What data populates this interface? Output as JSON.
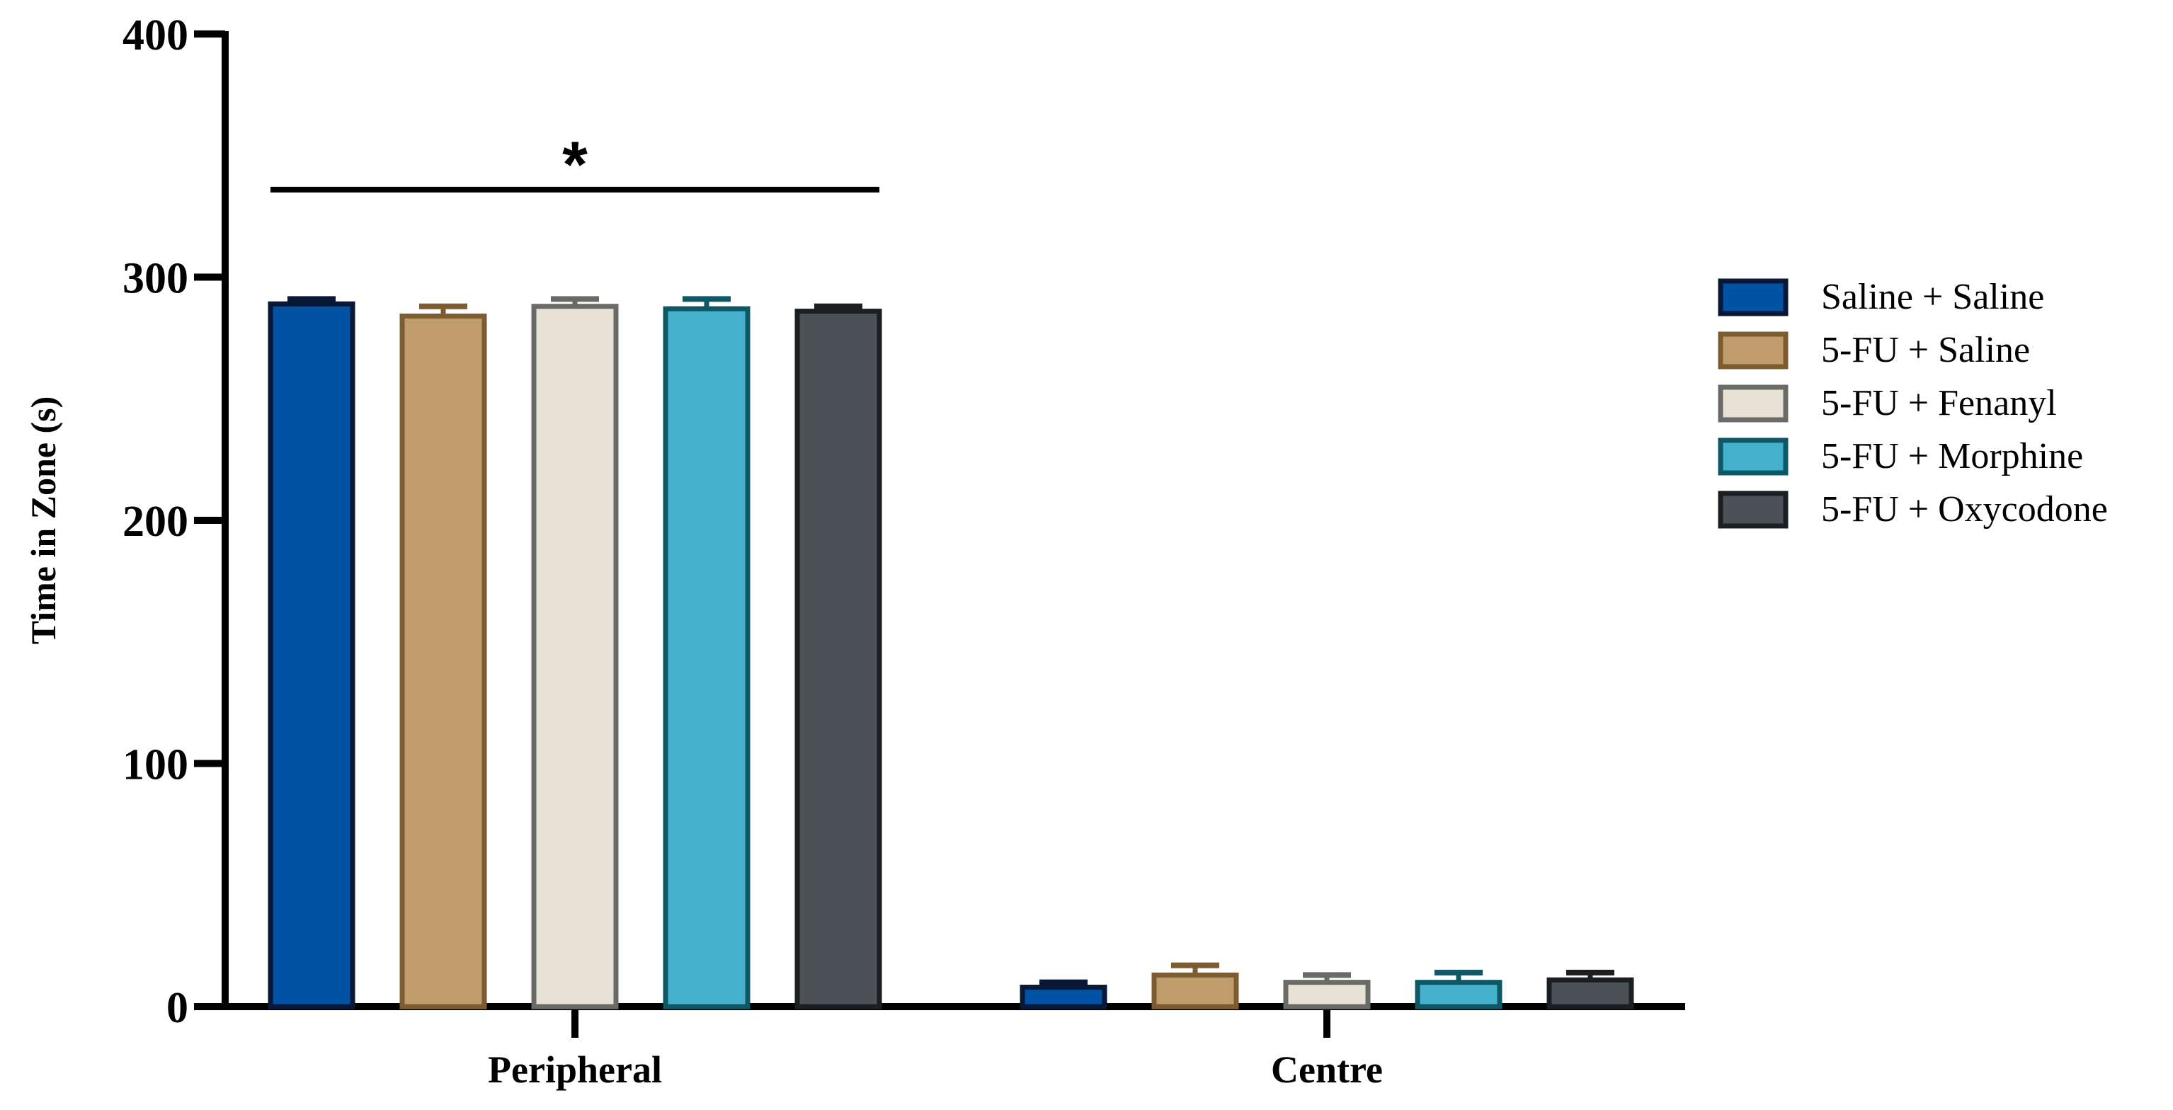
{
  "chart_data": {
    "type": "bar",
    "ylabel": "Time in Zone (s)",
    "xlabel": "",
    "ylim": [
      0,
      400
    ],
    "yticks": [
      0,
      100,
      200,
      300,
      400
    ],
    "categories": [
      "Peripheral",
      "Centre"
    ],
    "series": [
      {
        "name": "Saline + Saline",
        "values": [
          289,
          8
        ],
        "errors": [
          2,
          2
        ],
        "fill": "#0052a5",
        "stroke": "#0a1838"
      },
      {
        "name": "5-FU + Saline",
        "values": [
          284,
          13
        ],
        "errors": [
          4,
          4
        ],
        "fill": "#c19c6d",
        "stroke": "#7c5c30"
      },
      {
        "name": "5-FU + Fenanyl",
        "values": [
          288,
          10
        ],
        "errors": [
          3,
          3
        ],
        "fill": "#e7e0d5",
        "stroke": "#6a6a66"
      },
      {
        "name": "5-FU + Morphine",
        "values": [
          287,
          10
        ],
        "errors": [
          4,
          4
        ],
        "fill": "#44b0cc",
        "stroke": "#0e5767"
      },
      {
        "name": "5-FU + Oxycodone",
        "values": [
          286,
          11
        ],
        "errors": [
          2,
          3
        ],
        "fill": "#4c5157",
        "stroke": "#1c1f22"
      }
    ],
    "annotations": [
      {
        "text": "*",
        "category": "Peripheral",
        "y": 336
      }
    ],
    "legend_position": "right",
    "grid": false
  }
}
